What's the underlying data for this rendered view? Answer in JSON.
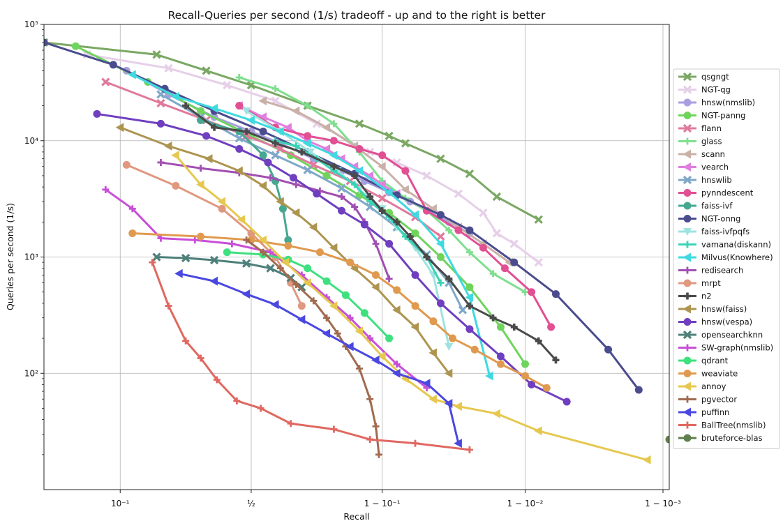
{
  "chart_data": {
    "type": "line",
    "title": "Recall-Queries per second (1/s) tradeoff - up and to the right is better",
    "xlabel": "Recall",
    "ylabel": "Queries per second (1/s)",
    "xscale": "logit",
    "yscale": "log",
    "xlim": [
      0.03,
      0.9991
    ],
    "ylim": [
      10,
      100000
    ],
    "x_ticks": [
      {
        "value": 0.1,
        "label": "10⁻¹"
      },
      {
        "value": 0.5,
        "label": "½"
      },
      {
        "value": 0.9,
        "label": "1 − 10⁻¹"
      },
      {
        "value": 0.99,
        "label": "1 − 10⁻²"
      },
      {
        "value": 0.999,
        "label": "1 − 10⁻³"
      }
    ],
    "y_ticks": [
      {
        "value": 100,
        "label": "10²"
      },
      {
        "value": 1000,
        "label": "10³"
      },
      {
        "value": 10000,
        "label": "10⁴"
      },
      {
        "value": 100000,
        "label": "10⁵"
      }
    ],
    "grid": true,
    "legend_position": "right",
    "series": [
      {
        "name": "qsgngt",
        "color": "#7aa863",
        "marker": "x",
        "x": [
          0.03,
          0.17,
          0.32,
          0.5,
          0.72,
          0.86,
          0.91,
          0.93,
          0.96,
          0.975,
          0.984,
          0.992
        ],
        "y": [
          70000,
          55000,
          40000,
          30000,
          20000,
          14000,
          11000,
          9500,
          7000,
          5200,
          3300,
          2100
        ]
      },
      {
        "name": "NGT-qg",
        "color": "#e6cfe8",
        "marker": "x",
        "x": [
          0.06,
          0.2,
          0.4,
          0.6,
          0.75,
          0.88,
          0.92,
          0.95,
          0.97,
          0.98,
          0.984,
          0.988,
          0.992
        ],
        "y": [
          55000,
          42000,
          30000,
          22000,
          14000,
          8000,
          6500,
          5000,
          3500,
          2400,
          1600,
          1300,
          900
        ]
      },
      {
        "name": "hnsw(nmslib)",
        "color": "#a99fe0",
        "marker": "o",
        "x": [
          0.11,
          0.2,
          0.35,
          0.5,
          0.62,
          0.74,
          0.82,
          0.87,
          0.91,
          0.935,
          0.95,
          0.965,
          0.975
        ],
        "y": [
          40000,
          25000,
          16000,
          12000,
          9500,
          7000,
          5500,
          4500,
          3600,
          3000,
          2500,
          2000,
          1600
        ]
      },
      {
        "name": "NGT-panng",
        "color": "#6fd45c",
        "marker": "o",
        "x": [
          0.05,
          0.15,
          0.3,
          0.5,
          0.66,
          0.78,
          0.86,
          0.91,
          0.94,
          0.96,
          0.975,
          0.985,
          0.99
        ],
        "y": [
          65000,
          32000,
          18000,
          11000,
          7500,
          5000,
          3400,
          2400,
          1600,
          1000,
          550,
          250,
          120
        ]
      },
      {
        "name": "flann",
        "color": "#e07a9c",
        "marker": "x",
        "x": [
          0.08,
          0.18,
          0.32,
          0.48,
          0.62,
          0.74,
          0.84,
          0.9,
          0.94,
          0.96
        ],
        "y": [
          32000,
          21000,
          15000,
          11000,
          8500,
          6200,
          4500,
          3200,
          2200,
          1500
        ]
      },
      {
        "name": "glass",
        "color": "#7fdf8f",
        "marker": "+",
        "x": [
          0.45,
          0.6,
          0.72,
          0.8,
          0.86,
          0.9,
          0.93,
          0.95,
          0.965,
          0.975,
          0.983,
          0.99
        ],
        "y": [
          35000,
          28000,
          20000,
          14000,
          8000,
          4500,
          3200,
          2500,
          1700,
          1100,
          720,
          500
        ]
      },
      {
        "name": "scann",
        "color": "#c9b1a8",
        "marker": "<",
        "x": [
          0.55,
          0.68,
          0.78,
          0.85,
          0.9,
          0.93,
          0.955,
          0.97,
          0.98,
          0.987
        ],
        "y": [
          22000,
          18000,
          13000,
          9000,
          6000,
          3800,
          2600,
          1800,
          1300,
          900
        ]
      },
      {
        "name": "vearch",
        "color": "#e07fdf",
        "marker": "<",
        "x": [
          0.45,
          0.55,
          0.65,
          0.72,
          0.78,
          0.82,
          0.85,
          0.88,
          0.9,
          0.92
        ],
        "y": [
          20000,
          16000,
          13000,
          10000,
          8500,
          7000,
          6000,
          5000,
          4200,
          3500
        ]
      },
      {
        "name": "hnswlib",
        "color": "#7fa8c8",
        "marker": "x",
        "x": [
          0.18,
          0.3,
          0.45,
          0.6,
          0.72,
          0.82,
          0.88,
          0.92,
          0.95,
          0.965,
          0.972
        ],
        "y": [
          25000,
          16000,
          10500,
          7500,
          5600,
          3900,
          2700,
          1800,
          1050,
          600,
          350
        ]
      },
      {
        "name": "pynndescent",
        "color": "#e24f93",
        "marker": "o",
        "x": [
          0.45,
          0.6,
          0.72,
          0.8,
          0.86,
          0.9,
          0.93,
          0.95,
          0.97,
          0.98,
          0.986,
          0.991,
          0.9935
        ],
        "y": [
          20000,
          13000,
          11000,
          10000,
          8500,
          7500,
          5500,
          2500,
          1700,
          1200,
          800,
          500,
          250
        ]
      },
      {
        "name": "faiss-ivf",
        "color": "#45a890",
        "marker": "o",
        "x": [
          0.3,
          0.45,
          0.55,
          0.6,
          0.63,
          0.65
        ],
        "y": [
          15000,
          12000,
          7500,
          4500,
          2600,
          1400
        ]
      },
      {
        "name": "NGT-onng",
        "color": "#4a4c8e",
        "marker": "o",
        "x": [
          0.03,
          0.09,
          0.19,
          0.35,
          0.55,
          0.72,
          0.85,
          0.92,
          0.96,
          0.975,
          0.988,
          0.994,
          0.9975,
          0.9985
        ],
        "y": [
          70000,
          45000,
          28000,
          18000,
          12000,
          8000,
          5200,
          3400,
          2300,
          1700,
          900,
          480,
          160,
          72
        ]
      },
      {
        "name": "faiss-ivfpqfs",
        "color": "#9fe3e0",
        "marker": "v",
        "x": [
          0.48,
          0.62,
          0.73,
          0.81,
          0.86,
          0.9,
          0.92,
          0.94,
          0.955,
          0.965
        ],
        "y": [
          18000,
          12000,
          8000,
          5500,
          3800,
          2600,
          1800,
          1200,
          700,
          170
        ]
      },
      {
        "name": "vamana(diskann)",
        "color": "#3ad3b5",
        "marker": "+",
        "x": [
          0.6,
          0.68,
          0.75,
          0.8,
          0.85,
          0.88,
          0.91,
          0.93,
          0.95,
          0.96
        ],
        "y": [
          10000,
          9000,
          7000,
          5500,
          4200,
          3000,
          2200,
          1500,
          1000,
          600
        ]
      },
      {
        "name": "Milvus(Knowhere)",
        "color": "#3fd9e0",
        "marker": "<",
        "x": [
          0.12,
          0.22,
          0.35,
          0.5,
          0.62,
          0.72,
          0.8,
          0.86,
          0.91,
          0.94,
          0.96,
          0.975,
          0.982
        ],
        "y": [
          37000,
          24000,
          19000,
          15000,
          12000,
          9500,
          7500,
          5500,
          3600,
          2300,
          1300,
          450,
          95
        ]
      },
      {
        "name": "redisearch",
        "color": "#a14fb2",
        "marker": "+",
        "x": [
          0.18,
          0.3,
          0.45,
          0.58,
          0.68,
          0.76,
          0.82,
          0.85,
          0.87,
          0.89,
          0.91
        ],
        "y": [
          6500,
          5800,
          5300,
          4800,
          4200,
          3700,
          3300,
          2700,
          2000,
          1300,
          650
        ]
      },
      {
        "name": "mrpt",
        "color": "#e0987f",
        "marker": "o",
        "x": [
          0.11,
          0.22,
          0.38,
          0.5,
          0.6,
          0.66,
          0.7
        ],
        "y": [
          6200,
          4100,
          2600,
          1600,
          1000,
          600,
          380
        ]
      },
      {
        "name": "n2",
        "color": "#4a4a4a",
        "marker": "P",
        "x": [
          0.25,
          0.35,
          0.48,
          0.6,
          0.7,
          0.8,
          0.85,
          0.88,
          0.9,
          0.92,
          0.935,
          0.95,
          0.965,
          0.975,
          0.983,
          0.988,
          0.992,
          0.994
        ],
        "y": [
          20000,
          13000,
          12000,
          9500,
          8000,
          6000,
          5000,
          3300,
          2500,
          2000,
          1500,
          1000,
          650,
          380,
          300,
          250,
          190,
          130
        ]
      },
      {
        "name": "hnsw(faiss)",
        "color": "#ad9550",
        "marker": "<",
        "x": [
          0.1,
          0.2,
          0.33,
          0.45,
          0.55,
          0.62,
          0.68,
          0.74,
          0.8,
          0.85,
          0.89,
          0.92,
          0.94,
          0.955,
          0.965
        ],
        "y": [
          13000,
          9000,
          7000,
          5500,
          4100,
          3000,
          2400,
          1800,
          1200,
          800,
          550,
          350,
          250,
          150,
          100
        ]
      },
      {
        "name": "hnsw(vespa)",
        "color": "#6f3fbf",
        "marker": "o",
        "x": [
          0.07,
          0.18,
          0.32,
          0.45,
          0.57,
          0.67,
          0.75,
          0.82,
          0.87,
          0.91,
          0.94,
          0.96,
          0.975,
          0.985,
          0.991,
          0.995
        ],
        "y": [
          17000,
          14000,
          11000,
          8500,
          6500,
          4800,
          3500,
          2500,
          1900,
          1300,
          700,
          400,
          240,
          140,
          80,
          57
        ]
      },
      {
        "name": "opensearchknn",
        "color": "#4e807a",
        "marker": "x",
        "x": [
          0.17,
          0.25,
          0.35,
          0.48,
          0.58,
          0.66,
          0.7
        ],
        "y": [
          1000,
          980,
          940,
          880,
          800,
          660,
          550
        ]
      },
      {
        "name": "SW-graph(nmslib)",
        "color": "#c84fd8",
        "marker": "+",
        "x": [
          0.08,
          0.12,
          0.18,
          0.28,
          0.42,
          0.58,
          0.7,
          0.78,
          0.84,
          0.88,
          0.92,
          0.95
        ],
        "y": [
          3800,
          2600,
          1450,
          1400,
          1300,
          1100,
          700,
          450,
          300,
          200,
          120,
          75
        ]
      },
      {
        "name": "qdrant",
        "color": "#3fe07f",
        "marker": "o",
        "x": [
          0.4,
          0.55,
          0.65,
          0.72,
          0.78,
          0.83,
          0.87,
          0.91
        ],
        "y": [
          1100,
          1050,
          950,
          800,
          620,
          470,
          330,
          200
        ]
      },
      {
        "name": "weaviate",
        "color": "#e09a4f",
        "marker": "o",
        "x": [
          0.12,
          0.3,
          0.5,
          0.65,
          0.76,
          0.84,
          0.89,
          0.92,
          0.94,
          0.955,
          0.967,
          0.977,
          0.985,
          0.99,
          0.993
        ],
        "y": [
          1600,
          1500,
          1400,
          1250,
          1100,
          900,
          700,
          520,
          380,
          280,
          200,
          160,
          120,
          95,
          75
        ]
      },
      {
        "name": "annoy",
        "color": "#e6c84f",
        "marker": "<",
        "x": [
          0.22,
          0.3,
          0.38,
          0.46,
          0.55,
          0.64,
          0.72,
          0.8,
          0.86,
          0.9,
          0.93,
          0.955,
          0.97,
          0.984,
          0.992,
          0.9987
        ],
        "y": [
          7500,
          4200,
          3000,
          2100,
          1400,
          900,
          600,
          380,
          230,
          140,
          90,
          60,
          52,
          45,
          32,
          18
        ]
      },
      {
        "name": "pgvector",
        "color": "#a16b4f",
        "marker": "+",
        "x": [
          0.48,
          0.55,
          0.62,
          0.68,
          0.74,
          0.78,
          0.81,
          0.83,
          0.86,
          0.88,
          0.89,
          0.895
        ],
        "y": [
          1400,
          1100,
          800,
          580,
          420,
          300,
          220,
          170,
          110,
          60,
          35,
          20
        ]
      },
      {
        "name": "puffinn",
        "color": "#4a48e0",
        "marker": "<",
        "x": [
          0.23,
          0.35,
          0.48,
          0.6,
          0.7,
          0.78,
          0.84,
          0.89,
          0.92,
          0.95,
          0.965,
          0.97
        ],
        "y": [
          720,
          620,
          480,
          390,
          290,
          220,
          170,
          130,
          100,
          82,
          55,
          25
        ]
      },
      {
        "name": "BallTree(nmslib)",
        "color": "#e06860",
        "marker": "+",
        "x": [
          0.16,
          0.2,
          0.25,
          0.3,
          0.36,
          0.44,
          0.54,
          0.66,
          0.8,
          0.88,
          0.94,
          0.975
        ],
        "y": [
          900,
          380,
          190,
          135,
          88,
          58,
          50,
          37,
          33,
          27,
          25,
          22
        ]
      },
      {
        "name": "bruteforce-blas",
        "color": "#5f7f4f",
        "marker": "o",
        "x": [
          0.9991
        ],
        "y": [
          27
        ]
      }
    ]
  }
}
